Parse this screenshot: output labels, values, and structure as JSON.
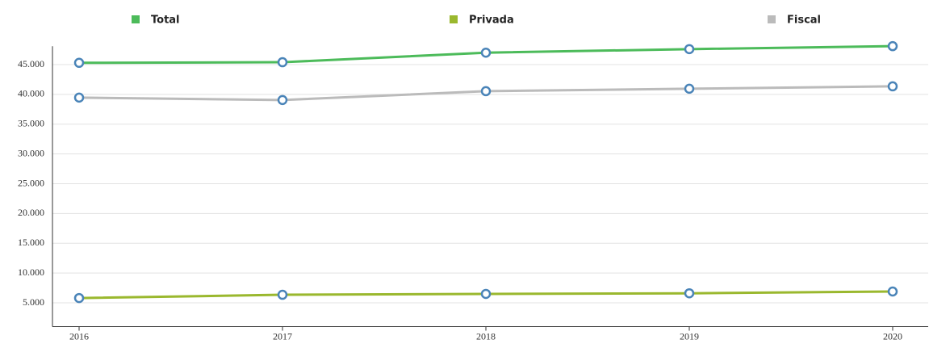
{
  "chart_data": {
    "type": "line",
    "categories": [
      "2016",
      "2017",
      "2018",
      "2019",
      "2020"
    ],
    "series": [
      {
        "name": "Total",
        "color": "#4cbb5a",
        "values": [
          45300,
          45400,
          47000,
          47600,
          48100
        ]
      },
      {
        "name": "Privada",
        "color": "#9ab82e",
        "values": [
          5800,
          6350,
          6500,
          6600,
          6900
        ]
      },
      {
        "name": "Fiscal",
        "color": "#bbbbbb",
        "values": [
          39460,
          39050,
          40540,
          40950,
          41350
        ]
      }
    ],
    "ylim": [
      1000,
      48500
    ],
    "yticks": [
      {
        "value": 5000,
        "label": "5.000"
      },
      {
        "value": 10000,
        "label": "10.000"
      },
      {
        "value": 15000,
        "label": "15.000"
      },
      {
        "value": 20000,
        "label": "20.000"
      },
      {
        "value": 25000,
        "label": "25.000"
      },
      {
        "value": 30000,
        "label": "30.000"
      },
      {
        "value": 35000,
        "label": "35.000"
      },
      {
        "value": 40000,
        "label": "40.000"
      },
      {
        "value": 45000,
        "label": "45.000"
      }
    ],
    "grid": true,
    "marker_color": "#4a84b8",
    "legend": "top"
  }
}
